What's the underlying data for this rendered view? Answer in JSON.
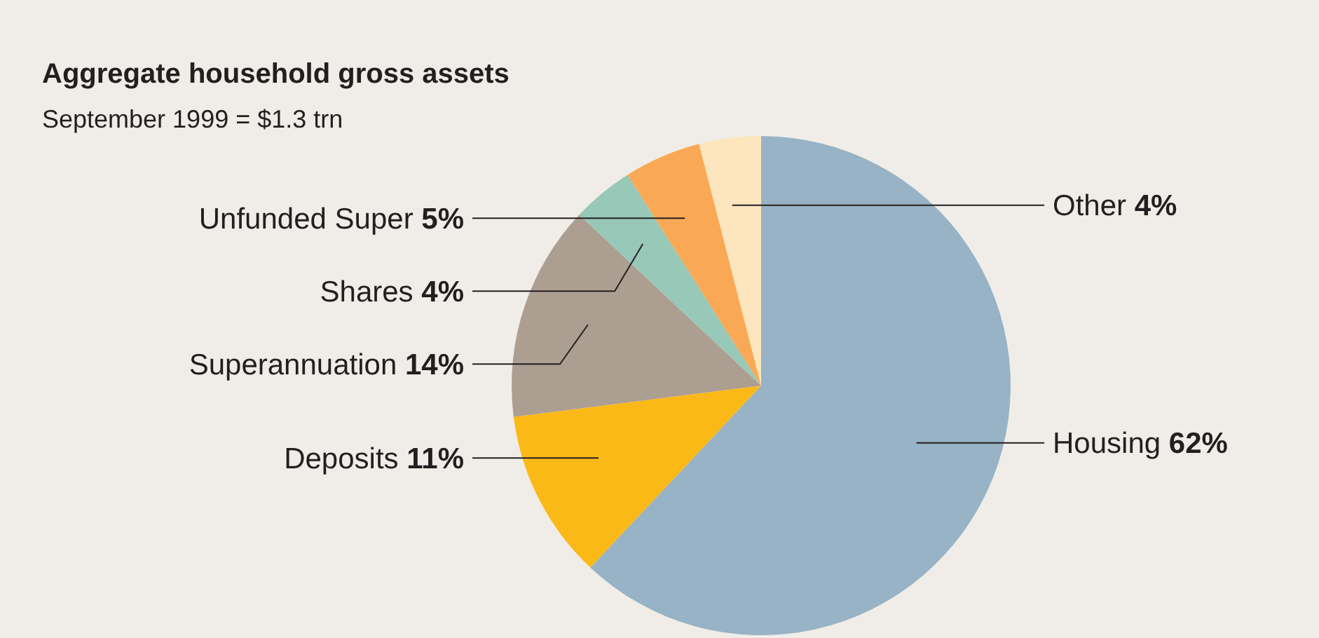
{
  "chart_data": {
    "type": "pie",
    "title": "Aggregate household gross assets",
    "subtitle": "September 1999 = $1.3 trn",
    "categories": [
      "Housing",
      "Deposits",
      "Superannuation",
      "Shares",
      "Unfunded Super",
      "Other"
    ],
    "values": [
      62,
      11,
      14,
      4,
      5,
      4
    ],
    "value_labels": [
      "62%",
      "11%",
      "14%",
      "4%",
      "5%",
      "4%"
    ],
    "colors": [
      "#97b3c5",
      "#fbb917",
      "#ac9f91",
      "#98c8b7",
      "#f9a955",
      "#fde5bd"
    ]
  }
}
